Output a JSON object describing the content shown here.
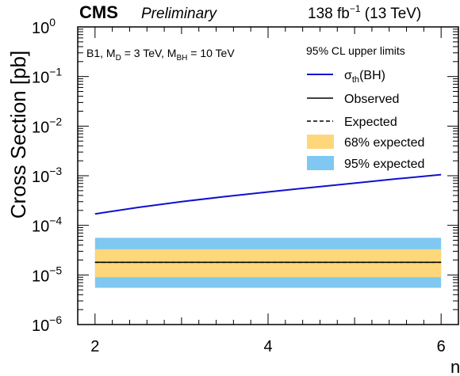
{
  "header": {
    "experiment": "CMS",
    "status": "Preliminary",
    "lumi_value": "138 fb",
    "lumi_exp": "−1",
    "energy": "(13 TeV)"
  },
  "model_label": {
    "prefix": "B1, M",
    "md_sub": "D",
    "md_value": " = 3 TeV, M",
    "mbh_sub": "BH",
    "mbh_value": " = 10 TeV"
  },
  "legend": {
    "title": "95% CL upper limits",
    "position": "top-right",
    "entries": [
      {
        "id": "theory",
        "label_main": "σ",
        "label_sub": "th",
        "label_rest": "(BH)",
        "color": "#1010d0",
        "style": "solid-line"
      },
      {
        "id": "observed",
        "label": "Observed",
        "color": "#000000",
        "style": "solid-line"
      },
      {
        "id": "expected",
        "label": "Expected",
        "color": "#000000",
        "style": "dashed-line"
      },
      {
        "id": "band68",
        "label": "68% expected",
        "color": "#fdd77a",
        "style": "box"
      },
      {
        "id": "band95",
        "label": "95% expected",
        "color": "#7ec8f2",
        "style": "box"
      }
    ]
  },
  "chart_data": {
    "type": "line",
    "ylabel": "Cross Section [pb]",
    "xlabel": "n",
    "xlim": [
      1.8,
      6.2
    ],
    "ylim_exp": [
      -6,
      0
    ],
    "yscale": "log",
    "xticks": [
      "2",
      "4",
      "6"
    ],
    "yticks": [
      {
        "base": "10",
        "exp": "0"
      },
      {
        "base": "10",
        "exp": "−1"
      },
      {
        "base": "10",
        "exp": "−2"
      },
      {
        "base": "10",
        "exp": "−3"
      },
      {
        "base": "10",
        "exp": "−4"
      },
      {
        "base": "10",
        "exp": "−5"
      },
      {
        "base": "10",
        "exp": "−6"
      }
    ],
    "series": [
      {
        "name": "σth(BH)",
        "color": "#1010d0",
        "x": [
          2,
          2.5,
          3,
          3.5,
          4,
          4.5,
          5,
          5.5,
          6
        ],
        "y": [
          0.00017,
          0.00023,
          0.0003,
          0.00038,
          0.00047,
          0.00058,
          0.00071,
          0.00087,
          0.00105
        ]
      },
      {
        "name": "Observed",
        "color": "#000000",
        "x": [
          2,
          6
        ],
        "y": [
          1.8e-05,
          1.8e-05
        ]
      },
      {
        "name": "Expected",
        "color": "#000000",
        "x": [
          2,
          6
        ],
        "y": [
          1.8e-05,
          1.8e-05
        ]
      }
    ],
    "bands": [
      {
        "name": "95% expected",
        "color": "#7ec8f2",
        "x": [
          2,
          6
        ],
        "low": 5.5e-06,
        "high": 5.6e-05
      },
      {
        "name": "68% expected",
        "color": "#fdd77a",
        "x": [
          2,
          6
        ],
        "low": 9e-06,
        "high": 3.3e-05
      }
    ]
  }
}
